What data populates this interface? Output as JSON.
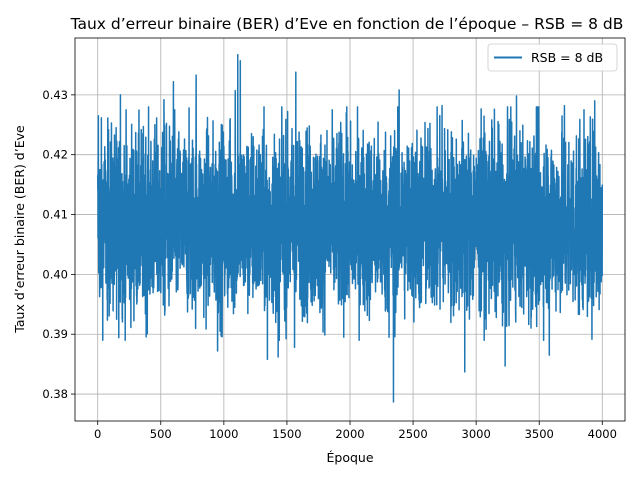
{
  "chart_data": {
    "type": "line",
    "title": "Taux d’erreur binaire (BER) d’Eve en fonction de l’époque – RSB = 8 dB",
    "xlabel": "Époque",
    "ylabel": "Taux d’erreur binaire (BER) d’Eve",
    "xlim": [
      -180,
      4180
    ],
    "ylim": [
      0.3755,
      0.4395
    ],
    "xticks": [
      0,
      500,
      1000,
      1500,
      2000,
      2500,
      3000,
      3500,
      4000
    ],
    "yticks": [
      0.38,
      0.39,
      0.4,
      0.41,
      0.42,
      0.43
    ],
    "grid": true,
    "legend": {
      "location": "upper right"
    },
    "series": [
      {
        "name": "RSB = 8 dB",
        "color": "#1f77b4",
        "x_range": [
          0,
          4000
        ],
        "n_points": 4000,
        "mean": 0.4087,
        "band_low": 0.401,
        "band_high": 0.417,
        "notable_points": [
          {
            "x": 5,
            "y": 0.4265
          },
          {
            "x": 75,
            "y": 0.3958
          },
          {
            "x": 150,
            "y": 0.3925
          },
          {
            "x": 180,
            "y": 0.43
          },
          {
            "x": 525,
            "y": 0.4292
          },
          {
            "x": 600,
            "y": 0.4322
          },
          {
            "x": 780,
            "y": 0.4333
          },
          {
            "x": 950,
            "y": 0.3872
          },
          {
            "x": 1050,
            "y": 0.426
          },
          {
            "x": 1090,
            "y": 0.4307
          },
          {
            "x": 1110,
            "y": 0.4367
          },
          {
            "x": 1130,
            "y": 0.4357
          },
          {
            "x": 1345,
            "y": 0.3858
          },
          {
            "x": 1430,
            "y": 0.3862
          },
          {
            "x": 1560,
            "y": 0.3878
          },
          {
            "x": 1570,
            "y": 0.4338
          },
          {
            "x": 1970,
            "y": 0.427
          },
          {
            "x": 2310,
            "y": 0.3895
          },
          {
            "x": 2345,
            "y": 0.3787
          },
          {
            "x": 2390,
            "y": 0.4308
          },
          {
            "x": 2730,
            "y": 0.4282
          },
          {
            "x": 2910,
            "y": 0.3837
          },
          {
            "x": 3230,
            "y": 0.3847
          },
          {
            "x": 3320,
            "y": 0.4298
          },
          {
            "x": 3580,
            "y": 0.3865
          },
          {
            "x": 3700,
            "y": 0.4282
          },
          {
            "x": 3940,
            "y": 0.429
          },
          {
            "x": 4000,
            "y": 0.415
          }
        ]
      }
    ]
  }
}
